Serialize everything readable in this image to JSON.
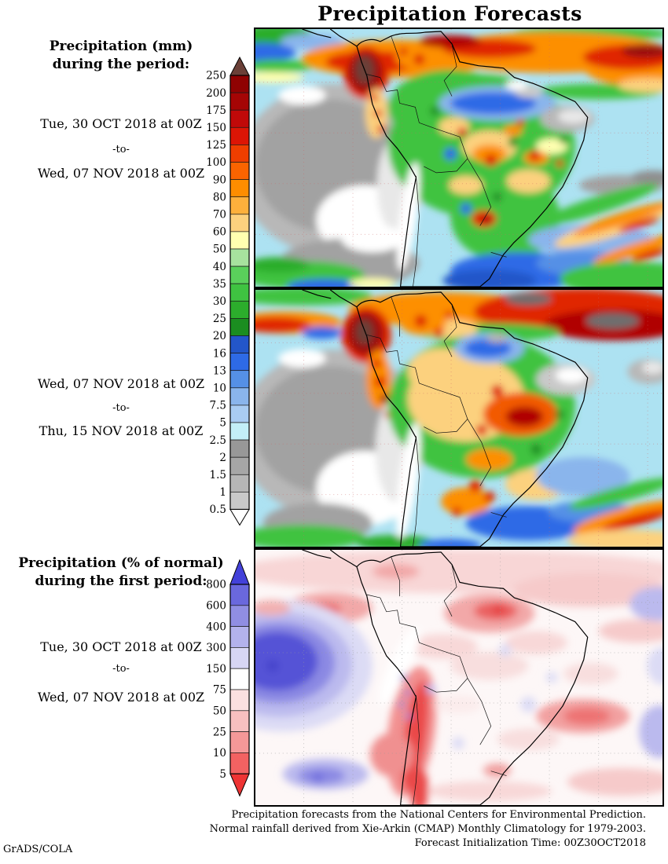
{
  "title": "Precipitation Forecasts",
  "credit": "GrADS/COLA",
  "left_labels": {
    "block1": {
      "heading": [
        "Precipitation (mm)",
        "during the period:"
      ],
      "from": "Tue, 30 OCT 2018 at 00Z",
      "sep": "-to-",
      "to": "Wed, 07 NOV 2018 at 00Z"
    },
    "block2": {
      "from": "Wed, 07 NOV 2018 at 00Z",
      "sep": "-to-",
      "to": "Thu, 15 NOV 2018 at 00Z"
    },
    "block3": {
      "heading": [
        "Precipitation (% of normal)",
        "during the first period:"
      ],
      "from": "Tue, 30 OCT 2018 at 00Z",
      "sep": "-to-",
      "to": "Wed, 07 NOV 2018 at 00Z"
    }
  },
  "colorbars": {
    "mm": {
      "units": "mm",
      "levels": [
        "250",
        "200",
        "175",
        "150",
        "125",
        "100",
        "90",
        "80",
        "70",
        "60",
        "50",
        "40",
        "35",
        "30",
        "25",
        "20",
        "16",
        "13",
        "10",
        "7.5",
        "5",
        "2.5",
        "2",
        "1.5",
        "1",
        "0.5"
      ],
      "colors": [
        "#8f0202",
        "#a50505",
        "#c00909",
        "#dc1505",
        "#ef3e00",
        "#fb6400",
        "#fe8d00",
        "#fdb03c",
        "#fcd17e",
        "#ffffb0",
        "#a7e29e",
        "#5ad05b",
        "#3fc341",
        "#2cad2c",
        "#1b8d20",
        "#2356c9",
        "#2e6ae6",
        "#5590e6",
        "#8ab5ec",
        "#a9ccf2",
        "#c3eff7",
        "#989898",
        "#a6a6a6",
        "#b6b6b6",
        "#c9c9c9"
      ],
      "above_color": "#6b4038",
      "below_color": "#ffffff"
    },
    "percent": {
      "units": "%",
      "levels": [
        "800",
        "600",
        "400",
        "300",
        "150",
        "75",
        "50",
        "25",
        "10",
        "5"
      ],
      "colors": [
        "#6a68dd",
        "#908ee3",
        "#b3b2ec",
        "#d7d6f4",
        "#ffffff",
        "#fbe0e0",
        "#f8c0c0",
        "#f59898",
        "#f26262"
      ],
      "above_color": "#4341d9",
      "below_color": "#ee3434"
    }
  },
  "footer": [
    "Precipitation forecasts from the National Centers for Environmental Prediction.",
    "Normal rainfall derived from Xie-Arkin (CMAP) Monthly Climatology for 1979-2003.",
    "Forecast Initialization Time: 00Z30OCT2018"
  ]
}
